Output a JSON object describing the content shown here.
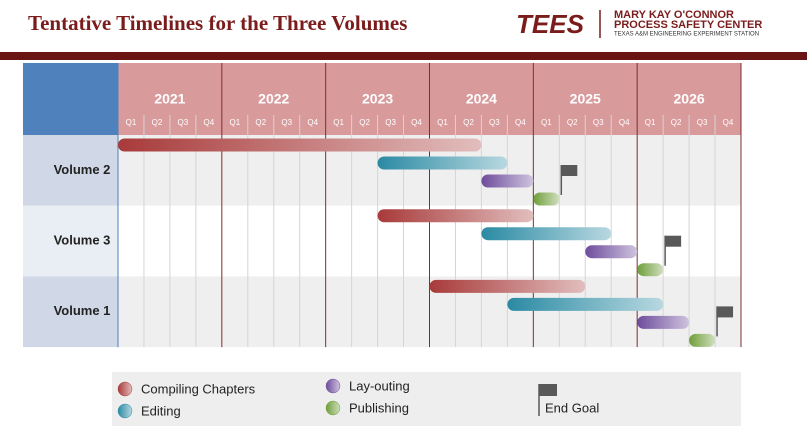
{
  "chart_data": {
    "type": "gantt",
    "title": "Tentative Timelines for the Three Volumes",
    "logo": {
      "mark": "TEES",
      "line1": "MARY KAY O'CONNOR",
      "line2": "PROCESS SAFETY CENTER",
      "line3": "TEXAS A&M ENGINEERING EXPERIMENT STATION"
    },
    "categories": [
      "Volume 2",
      "Volume 3",
      "Volume 1"
    ],
    "xlim": [
      2021,
      2027
    ],
    "xticks": [
      2021,
      2022,
      2023,
      2024,
      2025,
      2026
    ],
    "quarters": [
      "Q1",
      "Q2",
      "Q3",
      "Q4"
    ],
    "series": [
      {
        "name": "Compiling Chapters",
        "color": "#a83a3a",
        "starts": [
          2021,
          2023.5,
          2024
        ],
        "ends": [
          2024.5,
          2025,
          2025.5
        ]
      },
      {
        "name": "Editing",
        "color": "#2a8aa3",
        "starts": [
          2023.5,
          2024.5,
          2024.75
        ],
        "ends": [
          2024.75,
          2025.75,
          2026.25
        ]
      },
      {
        "name": "Lay-outing",
        "color": "#6e4c9c",
        "starts": [
          2024.5,
          2025.5,
          2026
        ],
        "ends": [
          2025,
          2026,
          2026.5
        ]
      },
      {
        "name": "Publishing",
        "color": "#6f9e3a",
        "starts": [
          2025,
          2026,
          2026.5
        ],
        "ends": [
          2025.25,
          2026.25,
          2026.75
        ]
      }
    ],
    "milestones": {
      "name": "End Goal",
      "color": "#595959",
      "values": [
        2025.25,
        2026.25,
        2026.75
      ]
    }
  }
}
